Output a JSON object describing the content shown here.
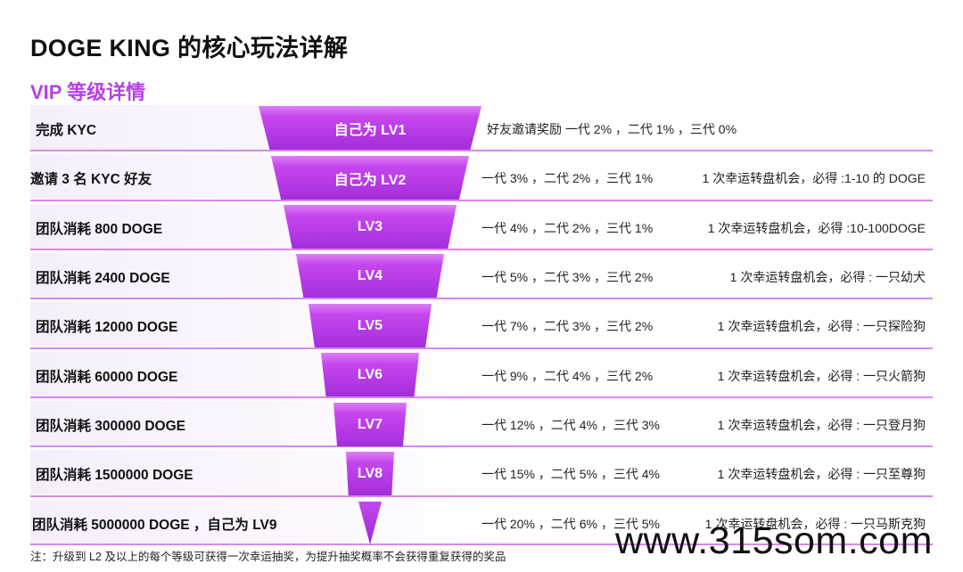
{
  "title": "DOGE KING 的核心玩法详解",
  "subtitle": "VIP 等级详情",
  "rows": [
    {
      "requirement": "完成 KYC",
      "level": "自己为 LV1",
      "reward": "好友邀请奖励 一代 2% ，二代 1% ，三代 0%",
      "luck": ""
    },
    {
      "requirement": "邀请 3 名 KYC 好友",
      "level": "自己为 LV2",
      "reward": "一代 3% ，二代 2% ，三代 1%",
      "luck": "1 次幸运转盘机会，必得 :1-10 的 DOGE"
    },
    {
      "requirement": "团队消耗 800 DOGE",
      "level": "LV3",
      "reward": "一代 4% ，二代 2% ，三代 1%",
      "luck": "1 次幸运转盘机会，必得 :10-100DOGE"
    },
    {
      "requirement": "团队消耗 2400 DOGE",
      "level": "LV4",
      "reward": "一代 5% ，二代 3% ，三代 2%",
      "luck": "1 次幸运转盘机会，必得 : 一只幼犬"
    },
    {
      "requirement": "团队消耗 12000 DOGE",
      "level": "LV5",
      "reward": "一代 7% ，二代 3% ，三代 2%",
      "luck": "1 次幸运转盘机会，必得 : 一只探险狗"
    },
    {
      "requirement": "团队消耗 60000 DOGE",
      "level": "LV6",
      "reward": "一代 9% ，二代 4% ，三代 2%",
      "luck": "1 次幸运转盘机会，必得 : 一只火箭狗"
    },
    {
      "requirement": "团队消耗 300000 DOGE",
      "level": "LV7",
      "reward": "一代 12% ，二代 4% ，三代 3%",
      "luck": "1 次幸运转盘机会，必得 : 一只登月狗"
    },
    {
      "requirement": "团队消耗 1500000 DOGE",
      "level": "LV8",
      "reward": "一代 15% ，二代 5% ，三代 4%",
      "luck": "1 次幸运转盘机会，必得 : 一只至尊狗"
    },
    {
      "requirement": "团队消耗 5000000 DOGE ，自己为 LV9",
      "level": "",
      "reward": "一代 20% ，二代 6% ，三代 5%",
      "luck": "1 次幸运转盘机会，必得 : 一只马斯克狗"
    }
  ],
  "note": "注：升级到 L2 及以上的每个等级可获得一次幸运抽奖，为提升抽奖概率不会获得重复获得的奖品",
  "watermark": "www.315som.com",
  "colors": {
    "accent": "#b640e6",
    "funnel": "#c04aee",
    "divider": "#d986f2"
  }
}
